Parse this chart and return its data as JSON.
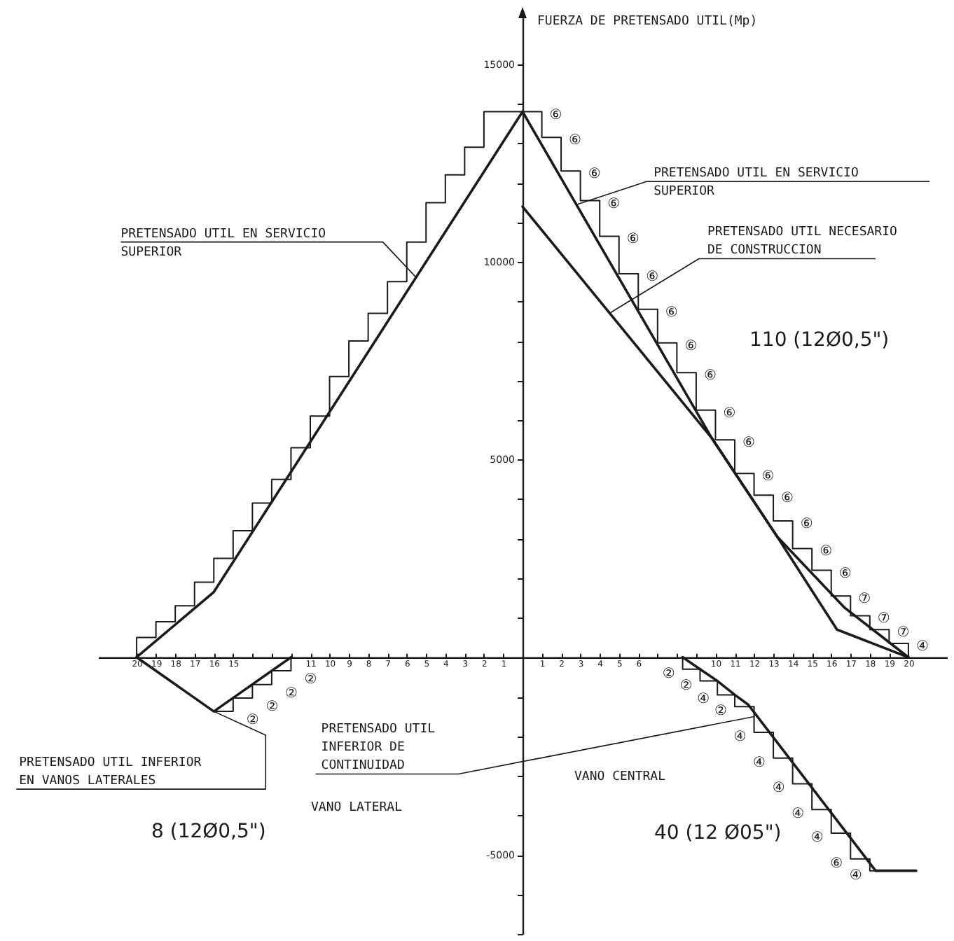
{
  "chart_data": {
    "type": "line",
    "ylabel": "FUERZA DE PRETENSADO UTIL(Mp)",
    "xlim": [
      -22,
      22
    ],
    "ylim": [
      -7000,
      16200
    ],
    "xticks": [
      {
        "value": -20,
        "label": "20"
      },
      {
        "value": -19,
        "label": "19"
      },
      {
        "value": -18,
        "label": "18"
      },
      {
        "value": -17,
        "label": "17"
      },
      {
        "value": -16,
        "label": "16"
      },
      {
        "value": -15,
        "label": "15"
      },
      {
        "value": -14,
        "label": null
      },
      {
        "value": -13,
        "label": null
      },
      {
        "value": -12,
        "label": null
      },
      {
        "value": -11,
        "label": "11"
      },
      {
        "value": -10,
        "label": "10"
      },
      {
        "value": -9,
        "label": "9"
      },
      {
        "value": -8,
        "label": "8"
      },
      {
        "value": -7,
        "label": "7"
      },
      {
        "value": -6,
        "label": "6"
      },
      {
        "value": -5,
        "label": "5"
      },
      {
        "value": -4,
        "label": "4"
      },
      {
        "value": -3,
        "label": "3"
      },
      {
        "value": -2,
        "label": "2"
      },
      {
        "value": -1,
        "label": "1"
      },
      1,
      2,
      3,
      4,
      5,
      6,
      {
        "value": 7,
        "label": null
      },
      {
        "value": 8,
        "label": null
      },
      {
        "value": 9,
        "label": null
      },
      10,
      11,
      12,
      13,
      14,
      15,
      16,
      17,
      18,
      19,
      20
    ],
    "yticks": [
      {
        "value": -7000,
        "label": null
      },
      {
        "value": -6000,
        "label": null
      },
      -5000,
      {
        "value": -4000,
        "label": null
      },
      {
        "value": -3000,
        "label": null
      },
      {
        "value": -2000,
        "label": null
      },
      {
        "value": -1000,
        "label": null
      },
      {
        "value": 1000,
        "label": null
      },
      {
        "value": 2000,
        "label": null
      },
      {
        "value": 3000,
        "label": null
      },
      {
        "value": 4000,
        "label": null
      },
      5000,
      {
        "value": 6000,
        "label": null
      },
      {
        "value": 7000,
        "label": null
      },
      {
        "value": 8000,
        "label": null
      },
      {
        "value": 9000,
        "label": null
      },
      10000,
      {
        "value": 11000,
        "label": null
      },
      {
        "value": 12000,
        "label": null
      },
      {
        "value": 13000,
        "label": null
      },
      {
        "value": 14000,
        "label": null
      },
      15000
    ],
    "series": [
      {
        "type": "line",
        "color": "#1a1a1a",
        "x": [
          -20,
          -16,
          0,
          9.8,
          13.2,
          16.7,
          20
        ],
        "values": [
          0,
          1650,
          13800,
          5550,
          3050,
          1250,
          0
        ]
      },
      {
        "type": "line",
        "color": "#1a1a1a",
        "x": [
          0,
          9.8,
          13.2,
          16.3,
          20
        ],
        "values": [
          11400,
          5550,
          3050,
          700,
          0
        ]
      },
      {
        "type": "step",
        "color": "#1a1a1a",
        "x": [
          -20,
          -20,
          -19,
          -19,
          -18,
          -18,
          -17,
          -17,
          -16,
          -16,
          -15,
          -15,
          -14,
          -14,
          -13,
          -13,
          -12,
          -12,
          -11,
          -11,
          -10,
          -10,
          -9,
          -9,
          -8,
          -8,
          -7,
          -7,
          -6,
          -6,
          -5,
          -5,
          -4,
          -4,
          -3,
          -3,
          -2,
          -2,
          1,
          1,
          2,
          2,
          3,
          3,
          4,
          4,
          5,
          5,
          6,
          6,
          7,
          7,
          8,
          8,
          9,
          9,
          10,
          10,
          11,
          11,
          12,
          12,
          13,
          13,
          14,
          14,
          15,
          15,
          16,
          16,
          17,
          17,
          18,
          18,
          19,
          19,
          20,
          20
        ],
        "values": [
          0,
          500,
          500,
          900,
          900,
          1300,
          1300,
          1900,
          1900,
          2500,
          2500,
          3200,
          3200,
          3900,
          3900,
          4500,
          4500,
          5300,
          5300,
          6100,
          6100,
          7100,
          7100,
          8000,
          8000,
          8700,
          8700,
          9500,
          9500,
          10500,
          10500,
          11500,
          11500,
          12200,
          12200,
          12900,
          12900,
          13800,
          13800,
          13150,
          13150,
          12300,
          12300,
          11550,
          11550,
          10650,
          10650,
          9700,
          9700,
          8800,
          8800,
          7950,
          7950,
          7200,
          7200,
          6250,
          6250,
          5500,
          5500,
          4650,
          4650,
          4100,
          4100,
          3450,
          3450,
          2750,
          2750,
          2200,
          2200,
          1550,
          1550,
          1050,
          1050,
          700,
          700,
          350,
          350,
          0
        ]
      },
      {
        "type": "line",
        "color": "#1a1a1a",
        "x": [
          -20,
          -16,
          -12
        ],
        "values": [
          0,
          -1370,
          0
        ]
      },
      {
        "type": "step",
        "color": "#1a1a1a",
        "x": [
          -16,
          -15,
          -15,
          -14,
          -14,
          -13,
          -13,
          -12,
          -12
        ],
        "values": [
          -1370,
          -1370,
          -1030,
          -1030,
          -690,
          -690,
          -340,
          -340,
          0
        ]
      },
      {
        "type": "line",
        "color": "#1a1a1a",
        "x": [
          8.3,
          9.2,
          10.1,
          11,
          11.7,
          18.3,
          20.4
        ],
        "values": [
          0,
          -300,
          -600,
          -950,
          -1200,
          -5400,
          -5400
        ]
      },
      {
        "type": "step",
        "color": "#1a1a1a",
        "x": [
          8.3,
          8.3,
          9.2,
          9.2,
          10.1,
          10.1,
          11,
          11,
          12,
          12,
          13,
          13,
          14,
          14,
          15,
          15,
          16,
          16,
          17,
          17,
          18,
          18,
          18.3
        ],
        "values": [
          0,
          -300,
          -300,
          -600,
          -600,
          -950,
          -950,
          -1250,
          -1250,
          -1900,
          -1900,
          -2550,
          -2550,
          -3200,
          -3200,
          -3850,
          -3850,
          -4450,
          -4450,
          -5100,
          -5100,
          -5400,
          -5400
        ]
      }
    ],
    "annotations": [
      {
        "text": "PRETENSADO UTIL EN SERVICIO\nSUPERIOR",
        "x": -5.5,
        "y": 9600
      },
      {
        "text": "PRETENSADO UTIL EN SERVICIO\nSUPERIOR",
        "x": 2.8,
        "y": 11450
      },
      {
        "text": "PRETENSADO UTIL NECESARIO\nDE CONSTRUCCION",
        "x": 4.5,
        "y": 8700
      },
      {
        "text": "PRETENSADO UTIL INFERIOR\nEN VANOS LATERALES",
        "x": -16,
        "y": -1370
      },
      {
        "text": "PRETENSADO UTIL\nINFERIOR DE\nCONTINUIDAD",
        "x": 12,
        "y": -1500
      },
      "110 (12Ø0,5\")",
      "8 (12Ø0,5\")",
      "VANO LATERAL",
      "VANO CENTRAL",
      "40 (12 Ø05\")",
      {
        "text": "⑥",
        "x": 1,
        "y": 13800
      },
      {
        "text": "⑥",
        "x": 2,
        "y": 13150
      },
      {
        "text": "⑥",
        "x": 3,
        "y": 12300
      },
      {
        "text": "⑥",
        "x": 4,
        "y": 11550
      },
      {
        "text": "⑥",
        "x": 5,
        "y": 10650
      },
      {
        "text": "⑥",
        "x": 6,
        "y": 9700
      },
      {
        "text": "⑥",
        "x": 7,
        "y": 8800
      },
      {
        "text": "⑥",
        "x": 8,
        "y": 7950
      },
      {
        "text": "⑥",
        "x": 9,
        "y": 7200
      },
      {
        "text": "⑥",
        "x": 10,
        "y": 6250
      },
      {
        "text": "⑥",
        "x": 11,
        "y": 5500
      },
      {
        "text": "⑥",
        "x": 12,
        "y": 4650
      },
      {
        "text": "⑥",
        "x": 13,
        "y": 4100
      },
      {
        "text": "⑥",
        "x": 14,
        "y": 3450
      },
      {
        "text": "⑥",
        "x": 15,
        "y": 2750
      },
      {
        "text": "⑥",
        "x": 16,
        "y": 2200
      },
      {
        "text": "⑦",
        "x": 17,
        "y": 1550
      },
      {
        "text": "⑦",
        "x": 18,
        "y": 1050
      },
      {
        "text": "⑦",
        "x": 19,
        "y": 700
      },
      {
        "text": "④",
        "x": 20,
        "y": 350
      },
      {
        "text": "②",
        "x": -15,
        "y": -1370
      },
      {
        "text": "②",
        "x": -14,
        "y": -1030
      },
      {
        "text": "②",
        "x": -13,
        "y": -690
      },
      {
        "text": "②",
        "x": -12,
        "y": -340
      },
      {
        "text": "②",
        "x": 8.3,
        "y": -300
      },
      {
        "text": "②",
        "x": 9.2,
        "y": -600
      },
      {
        "text": "④",
        "x": 10.1,
        "y": -950
      },
      {
        "text": "②",
        "x": 11,
        "y": -1250
      },
      {
        "text": "④",
        "x": 12,
        "y": -1900
      },
      {
        "text": "④",
        "x": 13,
        "y": -2550
      },
      {
        "text": "④",
        "x": 14,
        "y": -3200
      },
      {
        "text": "④",
        "x": 15,
        "y": -3850
      },
      {
        "text": "④",
        "x": 16,
        "y": -4450
      },
      {
        "text": "⑥",
        "x": 17,
        "y": -5100
      },
      {
        "text": "④",
        "x": 18,
        "y": -5400
      }
    ]
  }
}
